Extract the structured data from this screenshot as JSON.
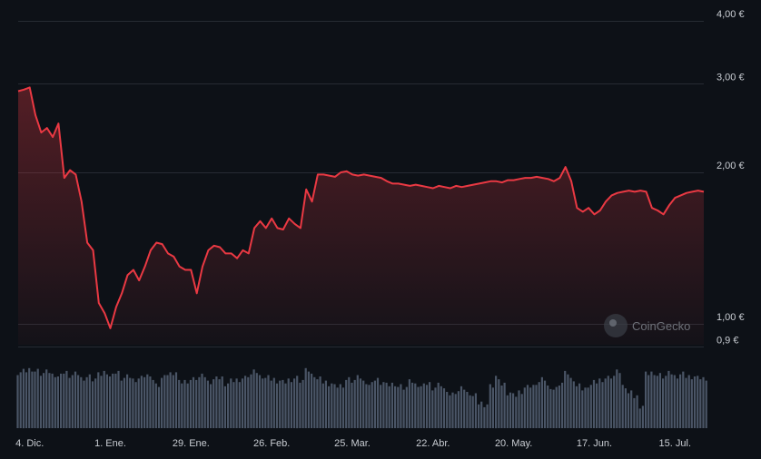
{
  "chart_data": {
    "type": "line",
    "title": "",
    "xlabel": "",
    "ylabel": "",
    "y_scale": "log",
    "ylim": [
      0.85,
      4.2
    ],
    "y_ticks": [
      {
        "value": 4.0,
        "label": "4,00 €"
      },
      {
        "value": 3.0,
        "label": "3,00 €"
      },
      {
        "value": 2.0,
        "label": "2,00 €"
      },
      {
        "value": 1.0,
        "label": "1,00 €"
      },
      {
        "value": 0.9,
        "label": "0,9 €"
      }
    ],
    "x_ticks": [
      {
        "date": "2023-12-04",
        "label": "4. Dic."
      },
      {
        "date": "2024-01-01",
        "label": "1. Ene."
      },
      {
        "date": "2024-01-29",
        "label": "29. Ene."
      },
      {
        "date": "2024-02-26",
        "label": "26. Feb."
      },
      {
        "date": "2024-03-25",
        "label": "25. Mar."
      },
      {
        "date": "2024-04-22",
        "label": "22. Abr."
      },
      {
        "date": "2024-05-20",
        "label": "20. May."
      },
      {
        "date": "2024-06-17",
        "label": "17. Jun."
      },
      {
        "date": "2024-07-15",
        "label": "15. Jul."
      }
    ],
    "grid": true,
    "line_color": "#ea3943",
    "volume_color": "#4a5566",
    "watermark": "CoinGecko",
    "series": [
      {
        "x": [
          "2023-11-30",
          "2023-12-02",
          "2023-12-04",
          "2023-12-06",
          "2023-12-08",
          "2023-12-10",
          "2023-12-12",
          "2023-12-14",
          "2023-12-16",
          "2023-12-18",
          "2023-12-20",
          "2023-12-22",
          "2023-12-24",
          "2023-12-26",
          "2023-12-28",
          "2023-12-30",
          "2024-01-01",
          "2024-01-03",
          "2024-01-05",
          "2024-01-07",
          "2024-01-09",
          "2024-01-11",
          "2024-01-13",
          "2024-01-15",
          "2024-01-17",
          "2024-01-19",
          "2024-01-21",
          "2024-01-23",
          "2024-01-25",
          "2024-01-27",
          "2024-01-29",
          "2024-01-31",
          "2024-02-02",
          "2024-02-04",
          "2024-02-06",
          "2024-02-08",
          "2024-02-10",
          "2024-02-12",
          "2024-02-14",
          "2024-02-16",
          "2024-02-18",
          "2024-02-20",
          "2024-02-22",
          "2024-02-24",
          "2024-02-26",
          "2024-02-28",
          "2024-03-01",
          "2024-03-03",
          "2024-03-05",
          "2024-03-07",
          "2024-03-09",
          "2024-03-11",
          "2024-03-13",
          "2024-03-15",
          "2024-03-17",
          "2024-03-19",
          "2024-03-21",
          "2024-03-23",
          "2024-03-25",
          "2024-03-27",
          "2024-03-29",
          "2024-03-31",
          "2024-04-02",
          "2024-04-04",
          "2024-04-06",
          "2024-04-08",
          "2024-04-10",
          "2024-04-12",
          "2024-04-14",
          "2024-04-16",
          "2024-04-18",
          "2024-04-20",
          "2024-04-22",
          "2024-04-24",
          "2024-04-26",
          "2024-04-28",
          "2024-04-30",
          "2024-05-02",
          "2024-05-04",
          "2024-05-06",
          "2024-05-08",
          "2024-05-10",
          "2024-05-12",
          "2024-05-14",
          "2024-05-16",
          "2024-05-18",
          "2024-05-20",
          "2024-05-22",
          "2024-05-24",
          "2024-05-26",
          "2024-05-28",
          "2024-05-30",
          "2024-06-01",
          "2024-06-03",
          "2024-06-05",
          "2024-06-07",
          "2024-06-09",
          "2024-06-11",
          "2024-06-13",
          "2024-06-15",
          "2024-06-17",
          "2024-06-19",
          "2024-06-21",
          "2024-06-23",
          "2024-06-25",
          "2024-06-27",
          "2024-06-29",
          "2024-07-01",
          "2024-07-03",
          "2024-07-05",
          "2024-07-07",
          "2024-07-09",
          "2024-07-11",
          "2024-07-13",
          "2024-07-15",
          "2024-07-17",
          "2024-07-19",
          "2024-07-21",
          "2024-07-23",
          "2024-07-25"
        ],
        "values": [
          2.9,
          2.92,
          2.95,
          2.6,
          2.4,
          2.45,
          2.35,
          2.5,
          1.95,
          2.02,
          1.98,
          1.75,
          1.45,
          1.4,
          1.1,
          1.05,
          0.98,
          1.08,
          1.15,
          1.25,
          1.28,
          1.22,
          1.3,
          1.4,
          1.45,
          1.44,
          1.38,
          1.36,
          1.3,
          1.28,
          1.28,
          1.15,
          1.3,
          1.4,
          1.43,
          1.42,
          1.38,
          1.38,
          1.35,
          1.4,
          1.38,
          1.55,
          1.6,
          1.55,
          1.62,
          1.55,
          1.54,
          1.62,
          1.58,
          1.55,
          1.85,
          1.75,
          1.98,
          1.98,
          1.97,
          1.96,
          2.0,
          2.01,
          1.98,
          1.97,
          1.98,
          1.97,
          1.96,
          1.95,
          1.92,
          1.9,
          1.9,
          1.89,
          1.88,
          1.89,
          1.88,
          1.87,
          1.86,
          1.88,
          1.87,
          1.86,
          1.88,
          1.87,
          1.88,
          1.89,
          1.9,
          1.91,
          1.92,
          1.92,
          1.91,
          1.93,
          1.93,
          1.94,
          1.95,
          1.95,
          1.96,
          1.95,
          1.94,
          1.92,
          1.95,
          2.05,
          1.92,
          1.7,
          1.67,
          1.7,
          1.65,
          1.68,
          1.75,
          1.8,
          1.82,
          1.83,
          1.84,
          1.83,
          1.84,
          1.83,
          1.7,
          1.68,
          1.65,
          1.72,
          1.78,
          1.8,
          1.82,
          1.83,
          1.84,
          1.83
        ],
        "volumes": [
          0.8,
          0.82,
          0.85,
          0.82,
          0.78,
          0.8,
          0.76,
          0.74,
          0.8,
          0.76,
          0.78,
          0.72,
          0.74,
          0.7,
          0.76,
          0.8,
          0.74,
          0.8,
          0.72,
          0.74,
          0.7,
          0.72,
          0.76,
          0.7,
          0.62,
          0.72,
          0.78,
          0.8,
          0.66,
          0.68,
          0.7,
          0.72,
          0.74,
          0.66,
          0.7,
          0.72,
          0.64,
          0.68,
          0.7,
          0.72,
          0.76,
          0.8,
          0.74,
          0.72,
          0.7,
          0.68,
          0.66,
          0.7,
          0.72,
          0.68,
          0.82,
          0.76,
          0.7,
          0.66,
          0.64,
          0.6,
          0.62,
          0.7,
          0.68,
          0.72,
          0.66,
          0.62,
          0.7,
          0.66,
          0.62,
          0.64,
          0.6,
          0.58,
          0.66,
          0.62,
          0.6,
          0.64,
          0.58,
          0.62,
          0.56,
          0.48,
          0.52,
          0.56,
          0.5,
          0.46,
          0.36,
          0.34,
          0.6,
          0.74,
          0.62,
          0.5,
          0.46,
          0.52,
          0.58,
          0.6,
          0.66,
          0.7,
          0.6,
          0.56,
          0.64,
          0.78,
          0.7,
          0.6,
          0.56,
          0.62,
          0.66,
          0.7,
          0.72,
          0.74,
          0.8,
          0.6,
          0.5,
          0.45,
          0.32,
          0.78,
          0.8,
          0.76,
          0.74,
          0.78,
          0.74,
          0.77,
          0.74,
          0.74,
          0.72,
          0.72
        ]
      }
    ]
  }
}
